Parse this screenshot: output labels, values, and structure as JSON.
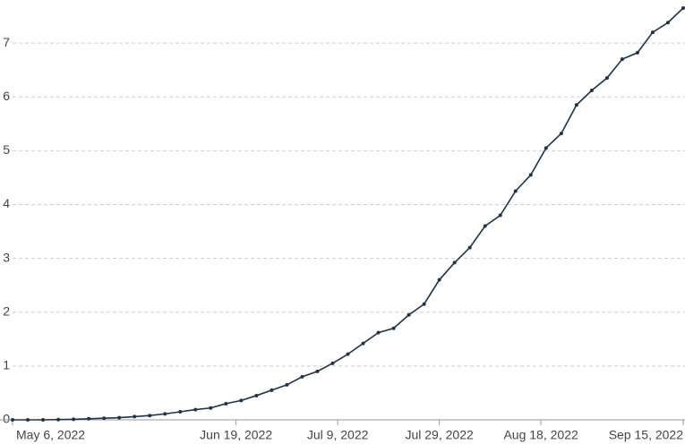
{
  "chart_data": {
    "type": "line",
    "x": [
      "2022-05-06",
      "2022-05-09",
      "2022-05-12",
      "2022-05-15",
      "2022-05-18",
      "2022-05-21",
      "2022-05-24",
      "2022-05-27",
      "2022-05-30",
      "2022-06-02",
      "2022-06-05",
      "2022-06-08",
      "2022-06-11",
      "2022-06-14",
      "2022-06-17",
      "2022-06-20",
      "2022-06-23",
      "2022-06-26",
      "2022-06-29",
      "2022-07-02",
      "2022-07-05",
      "2022-07-08",
      "2022-07-11",
      "2022-07-14",
      "2022-07-17",
      "2022-07-20",
      "2022-07-23",
      "2022-07-26",
      "2022-07-29",
      "2022-08-01",
      "2022-08-04",
      "2022-08-07",
      "2022-08-10",
      "2022-08-13",
      "2022-08-16",
      "2022-08-19",
      "2022-08-22",
      "2022-08-25",
      "2022-08-28",
      "2022-08-31",
      "2022-09-03",
      "2022-09-06",
      "2022-09-09",
      "2022-09-12",
      "2022-09-15"
    ],
    "values": [
      0,
      0,
      0,
      0.005,
      0.01,
      0.02,
      0.03,
      0.04,
      0.06,
      0.08,
      0.11,
      0.15,
      0.19,
      0.22,
      0.3,
      0.36,
      0.45,
      0.55,
      0.65,
      0.8,
      0.9,
      1.05,
      1.22,
      1.42,
      1.62,
      1.7,
      1.95,
      2.15,
      2.6,
      2.92,
      3.2,
      3.6,
      3.8,
      4.25,
      4.55,
      5.05,
      5.32,
      5.85,
      6.12,
      6.35,
      6.7,
      6.82,
      7.2,
      7.38,
      7.65
    ],
    "color": "#1f3347",
    "xlim": [
      "2022-05-06",
      "2022-09-15"
    ],
    "xticks": [
      {
        "value": "2022-05-06",
        "label": "May 6, 2022"
      },
      {
        "value": "2022-06-19",
        "label": "Jun 19, 2022"
      },
      {
        "value": "2022-07-09",
        "label": "Jul 9, 2022"
      },
      {
        "value": "2022-07-29",
        "label": "Jul 29, 2022"
      },
      {
        "value": "2022-08-18",
        "label": "Aug 18, 2022"
      },
      {
        "value": "2022-09-15",
        "label": "Sep 15, 2022"
      }
    ],
    "ylim": [
      0,
      7.7
    ],
    "yticks": [
      0,
      1,
      2,
      3,
      4,
      5,
      6,
      7
    ],
    "grid": true
  }
}
